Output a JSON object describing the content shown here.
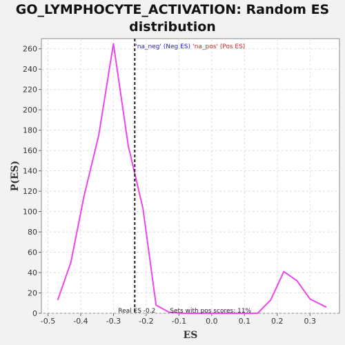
{
  "chart_data": {
    "type": "line",
    "title_line1": "GO_LYMPHOCYTE_ACTIVATION: Random ES",
    "title_line2": "distribution",
    "xlabel": "ES",
    "ylabel": "P(ES)",
    "xlim": [
      -0.52,
      0.39
    ],
    "ylim": [
      0,
      270
    ],
    "grid": true,
    "x_ticks": [
      -0.5,
      -0.4,
      -0.3,
      -0.2,
      -0.1,
      0.0,
      0.1,
      0.2,
      0.3
    ],
    "x_tick_labels": [
      "-0.5",
      "-0.4",
      "-0.3",
      "-0.2",
      "-0.1",
      "0.0",
      "0.1",
      "0.2",
      "0.3"
    ],
    "y_ticks": [
      0,
      20,
      40,
      60,
      80,
      100,
      120,
      140,
      160,
      180,
      200,
      220,
      240,
      260
    ],
    "y_tick_labels": [
      "0",
      "20",
      "40",
      "60",
      "80",
      "100",
      "120",
      "140",
      "160",
      "180",
      "200",
      "220",
      "240",
      "260"
    ],
    "series": [
      {
        "color": "#ee44ee",
        "x": [
          -0.47,
          -0.43,
          -0.39,
          -0.345,
          -0.3,
          -0.255,
          -0.21,
          -0.17,
          -0.13,
          -0.09,
          -0.05,
          -0.01,
          0.03,
          0.07,
          0.11,
          0.14,
          0.18,
          0.22,
          0.26,
          0.3,
          0.35
        ],
        "y": [
          13,
          50,
          115,
          175,
          265,
          165,
          103,
          8,
          1,
          0,
          0,
          0,
          0,
          0,
          0,
          0,
          13,
          41,
          32,
          14,
          6
        ]
      }
    ],
    "real_es": -0.235,
    "legend_neg": "'na_neg' (Neg ES)",
    "legend_pos": "'na_pos' (Pos ES)",
    "annotation_real": "Real ES -0.2",
    "annotation_sets": "Sets with pos scores: 11%",
    "colors": {
      "line": "#ee44ee",
      "real_es_line": "#222222",
      "grid": "#dddddd",
      "plot_bg": "#ffffff",
      "page_bg": "#f2f2f2"
    }
  }
}
